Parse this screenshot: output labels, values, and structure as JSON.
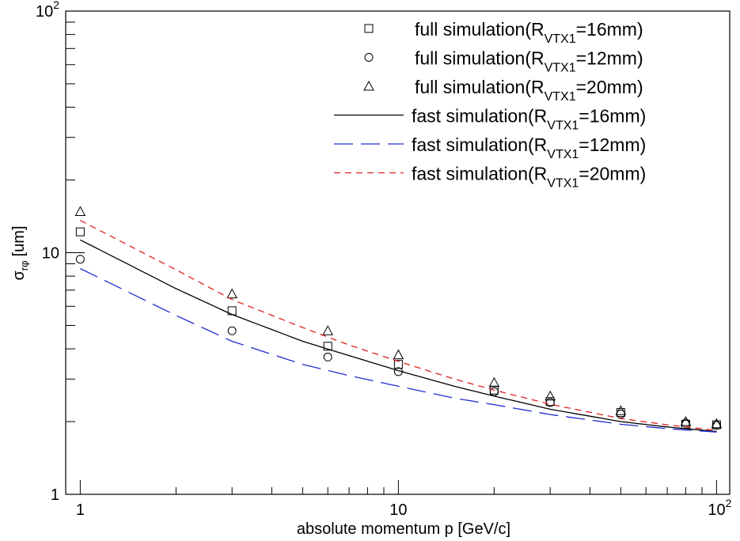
{
  "chart_data": {
    "type": "scatter",
    "xlabel": "absolute momentum p [GeV/c]",
    "ylabel": {
      "main": "σ",
      "sub": "rφ",
      "unit": "[um]"
    },
    "x_scale": "log",
    "y_scale": "log",
    "xlim": [
      0.9,
      110
    ],
    "ylim": [
      1,
      100
    ],
    "x_tick_labels": [
      {
        "value": 1,
        "base": "1",
        "exp": ""
      },
      {
        "value": 10,
        "base": "10",
        "exp": ""
      },
      {
        "value": 100,
        "base": "10",
        "exp": "2"
      }
    ],
    "y_tick_labels": [
      {
        "value": 1,
        "base": "1",
        "exp": ""
      },
      {
        "value": 10,
        "base": "10",
        "exp": ""
      },
      {
        "value": 100,
        "base": "10",
        "exp": "2"
      }
    ],
    "grid": false,
    "legend_position": "top-right",
    "series": [
      {
        "name": "full simulation(RVTX1=16mm)",
        "legend": {
          "prefix": "full simulation(R",
          "sub": "VTX1",
          "suffix": "=16mm)"
        },
        "kind": "markers",
        "marker": "square",
        "color": "#000000",
        "x": [
          1,
          3,
          6,
          10,
          20,
          30,
          50,
          80,
          100
        ],
        "y": [
          12.2,
          5.75,
          4.1,
          3.45,
          2.7,
          2.42,
          2.18,
          1.95,
          1.94
        ]
      },
      {
        "name": "full simulation(RVTX1=12mm)",
        "legend": {
          "prefix": "full simulation(R",
          "sub": "VTX1",
          "suffix": "=12mm)"
        },
        "kind": "markers",
        "marker": "circle",
        "color": "#000000",
        "x": [
          1,
          3,
          6,
          10,
          20,
          30,
          50,
          80,
          100
        ],
        "y": [
          9.4,
          4.75,
          3.7,
          3.22,
          2.66,
          2.4,
          2.15,
          1.97,
          1.93
        ]
      },
      {
        "name": "full simulation(RVTX1=20mm)",
        "legend": {
          "prefix": "full simulation(R",
          "sub": "VTX1",
          "suffix": "=20mm)"
        },
        "kind": "markers",
        "marker": "triangle",
        "color": "#000000",
        "x": [
          1,
          3,
          6,
          10,
          20,
          30,
          50,
          80,
          100
        ],
        "y": [
          14.8,
          6.75,
          4.75,
          3.78,
          2.9,
          2.55,
          2.22,
          2.0,
          1.96
        ]
      },
      {
        "name": "fast simulation(RVTX1=16mm)",
        "legend": {
          "prefix": "fast simulation(R",
          "sub": "VTX1",
          "suffix": "=16mm)"
        },
        "kind": "line",
        "dash": "solid",
        "color": "#000000",
        "x": [
          1,
          2,
          3,
          5,
          7,
          10,
          15,
          20,
          30,
          50,
          70,
          100
        ],
        "y": [
          11.3,
          7.1,
          5.55,
          4.3,
          3.75,
          3.25,
          2.8,
          2.55,
          2.25,
          2.0,
          1.9,
          1.82
        ]
      },
      {
        "name": "fast simulation(RVTX1=12mm)",
        "legend": {
          "prefix": "fast simulation(R",
          "sub": "VTX1",
          "suffix": "=12mm)"
        },
        "kind": "line",
        "dash": "long-dash",
        "color": "#1f2ed1",
        "x": [
          1,
          2,
          3,
          5,
          7,
          10,
          15,
          20,
          30,
          50,
          70,
          100
        ],
        "y": [
          8.6,
          5.5,
          4.3,
          3.45,
          3.1,
          2.8,
          2.5,
          2.35,
          2.14,
          1.95,
          1.87,
          1.81
        ]
      },
      {
        "name": "fast simulation(RVTX1=20mm)",
        "legend": {
          "prefix": "fast simulation(R",
          "sub": "VTX1",
          "suffix": "=20mm)"
        },
        "kind": "line",
        "dash": "short-dash",
        "color": "#e02020",
        "x": [
          1,
          2,
          3,
          5,
          7,
          10,
          15,
          20,
          30,
          50,
          70,
          100
        ],
        "y": [
          13.6,
          8.5,
          6.4,
          4.9,
          4.15,
          3.55,
          3.0,
          2.7,
          2.36,
          2.06,
          1.94,
          1.84
        ]
      }
    ]
  }
}
